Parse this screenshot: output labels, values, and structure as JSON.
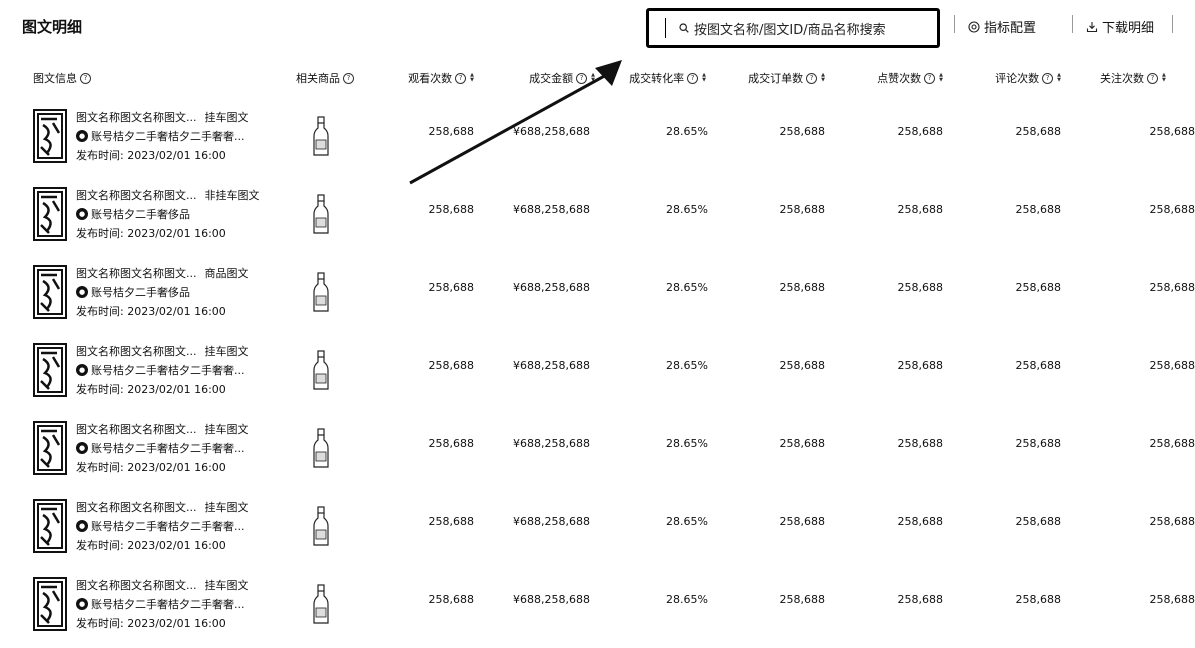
{
  "page": {
    "title": "图文明细"
  },
  "search": {
    "placeholder": "按图文名称/图文ID/商品名称搜索"
  },
  "toolbar": {
    "metrics_label": "指标配置",
    "download_label": "下载明细"
  },
  "columns": [
    {
      "key": "info",
      "label": "图文信息",
      "help": true,
      "sortable": false
    },
    {
      "key": "product",
      "label": "相关商品",
      "help": true,
      "sortable": false
    },
    {
      "key": "views",
      "label": "观看次数",
      "help": true,
      "sortable": true
    },
    {
      "key": "gmv",
      "label": "成交金额",
      "help": true,
      "sortable": true
    },
    {
      "key": "cvr",
      "label": "成交转化率",
      "help": true,
      "sortable": true
    },
    {
      "key": "orders",
      "label": "成交订单数",
      "help": true,
      "sortable": true
    },
    {
      "key": "likes",
      "label": "点赞次数",
      "help": true,
      "sortable": true
    },
    {
      "key": "comments",
      "label": "评论次数",
      "help": true,
      "sortable": true
    },
    {
      "key": "follows",
      "label": "关注次数",
      "help": true,
      "sortable": true
    }
  ],
  "rows": [
    {
      "title": "图文名称图文名称图文...",
      "tag": "挂车图文",
      "account": "账号桔夕二手奢桔夕二手奢奢...",
      "date": "发布时间: 2023/02/01 16:00",
      "views": "258,688",
      "gmv": "¥688,258,688",
      "cvr": "28.65%",
      "orders": "258,688",
      "likes": "258,688",
      "comments": "258,688",
      "follows": "258,688"
    },
    {
      "title": "图文名称图文名称图文...",
      "tag": "非挂车图文",
      "account": "账号桔夕二手奢侈品",
      "date": "发布时间: 2023/02/01 16:00",
      "views": "258,688",
      "gmv": "¥688,258,688",
      "cvr": "28.65%",
      "orders": "258,688",
      "likes": "258,688",
      "comments": "258,688",
      "follows": "258,688"
    },
    {
      "title": "图文名称图文名称图文...",
      "tag": "商品图文",
      "account": "账号桔夕二手奢侈品",
      "date": "发布时间: 2023/02/01 16:00",
      "views": "258,688",
      "gmv": "¥688,258,688",
      "cvr": "28.65%",
      "orders": "258,688",
      "likes": "258,688",
      "comments": "258,688",
      "follows": "258,688"
    },
    {
      "title": "图文名称图文名称图文...",
      "tag": "挂车图文",
      "account": "账号桔夕二手奢桔夕二手奢奢...",
      "date": "发布时间: 2023/02/01 16:00",
      "views": "258,688",
      "gmv": "¥688,258,688",
      "cvr": "28.65%",
      "orders": "258,688",
      "likes": "258,688",
      "comments": "258,688",
      "follows": "258,688"
    },
    {
      "title": "图文名称图文名称图文...",
      "tag": "挂车图文",
      "account": "账号桔夕二手奢桔夕二手奢奢...",
      "date": "发布时间: 2023/02/01 16:00",
      "views": "258,688",
      "gmv": "¥688,258,688",
      "cvr": "28.65%",
      "orders": "258,688",
      "likes": "258,688",
      "comments": "258,688",
      "follows": "258,688"
    },
    {
      "title": "图文名称图文名称图文...",
      "tag": "挂车图文",
      "account": "账号桔夕二手奢桔夕二手奢奢...",
      "date": "发布时间: 2023/02/01 16:00",
      "views": "258,688",
      "gmv": "¥688,258,688",
      "cvr": "28.65%",
      "orders": "258,688",
      "likes": "258,688",
      "comments": "258,688",
      "follows": "258,688"
    },
    {
      "title": "图文名称图文名称图文...",
      "tag": "挂车图文",
      "account": "账号桔夕二手奢桔夕二手奢奢...",
      "date": "发布时间: 2023/02/01 16:00",
      "views": "258,688",
      "gmv": "¥688,258,688",
      "cvr": "28.65%",
      "orders": "258,688",
      "likes": "258,688",
      "comments": "258,688",
      "follows": "258,688"
    }
  ]
}
